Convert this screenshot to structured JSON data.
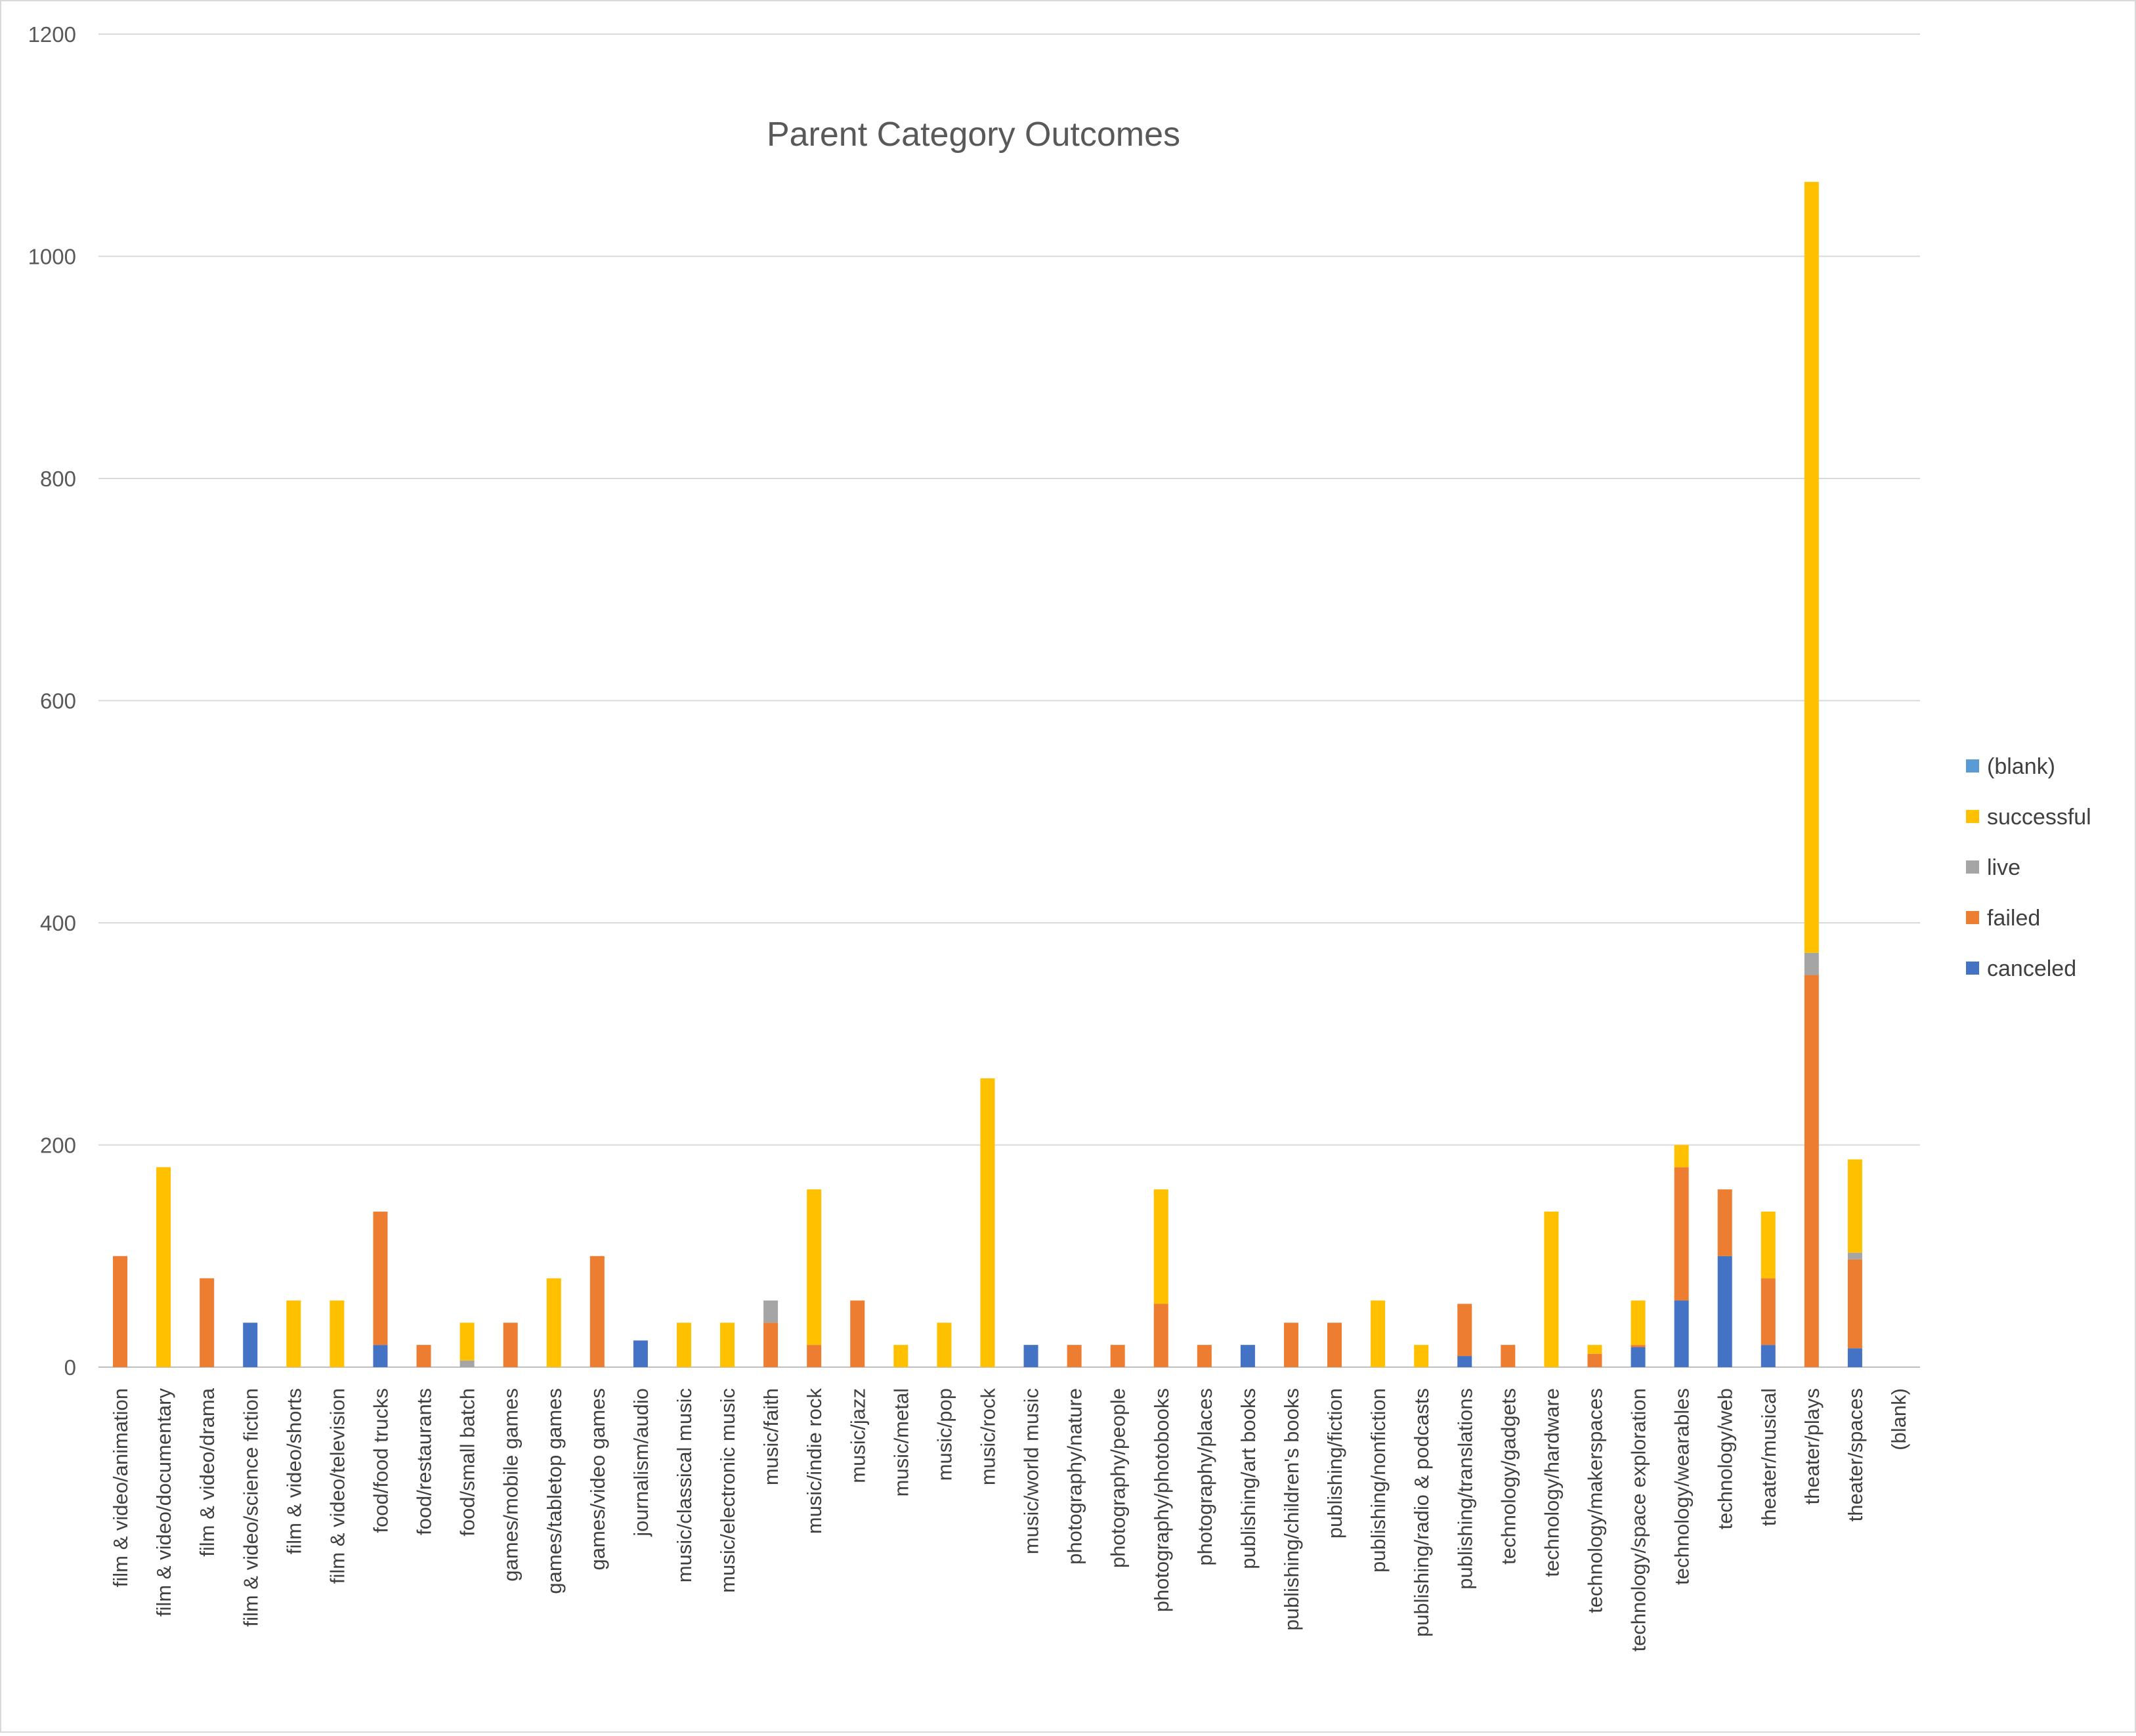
{
  "chart_data": {
    "type": "bar",
    "stacked": true,
    "title": "Parent Category Outcomes",
    "xlabel": "",
    "ylabel": "",
    "ylim": [
      0,
      1200
    ],
    "yticks": [
      "0",
      "200",
      "400",
      "600",
      "800",
      "1000",
      "1200"
    ],
    "grid": true,
    "legend_position": "right",
    "categories": [
      "film & video/animation",
      "film & video/documentary",
      "film & video/drama",
      "film & video/science fiction",
      "film & video/shorts",
      "film & video/television",
      "food/food trucks",
      "food/restaurants",
      "food/small batch",
      "games/mobile games",
      "games/tabletop games",
      "games/video games",
      "journalism/audio",
      "music/classical music",
      "music/electronic music",
      "music/faith",
      "music/indie rock",
      "music/jazz",
      "music/metal",
      "music/pop",
      "music/rock",
      "music/world music",
      "photography/nature",
      "photography/people",
      "photography/photobooks",
      "photography/places",
      "publishing/art books",
      "publishing/children's books",
      "publishing/fiction",
      "publishing/nonfiction",
      "publishing/radio & podcasts",
      "publishing/translations",
      "technology/gadgets",
      "technology/hardware",
      "technology/makerspaces",
      "technology/space exploration",
      "technology/wearables",
      "technology/web",
      "theater/musical",
      "theater/plays",
      "theater/spaces",
      "(blank)"
    ],
    "series": [
      {
        "name": "canceled",
        "color": "#4472c4",
        "values": [
          0,
          0,
          0,
          40,
          0,
          0,
          20,
          0,
          0,
          0,
          0,
          0,
          24,
          0,
          0,
          0,
          0,
          0,
          0,
          0,
          0,
          20,
          0,
          0,
          0,
          0,
          20,
          0,
          0,
          0,
          0,
          10,
          0,
          0,
          0,
          18,
          60,
          100,
          20,
          0,
          17,
          0
        ]
      },
      {
        "name": "failed",
        "color": "#ed7d31",
        "values": [
          100,
          0,
          80,
          0,
          0,
          0,
          120,
          20,
          0,
          40,
          0,
          100,
          0,
          0,
          0,
          40,
          20,
          60,
          0,
          0,
          0,
          0,
          20,
          20,
          57,
          20,
          0,
          40,
          40,
          0,
          0,
          47,
          20,
          0,
          12,
          2,
          120,
          60,
          60,
          353,
          80,
          0
        ]
      },
      {
        "name": "live",
        "color": "#a5a5a5",
        "values": [
          0,
          0,
          0,
          0,
          0,
          0,
          0,
          0,
          6,
          0,
          0,
          0,
          0,
          0,
          0,
          20,
          0,
          0,
          0,
          0,
          0,
          0,
          0,
          0,
          0,
          0,
          0,
          0,
          0,
          0,
          0,
          0,
          0,
          0,
          0,
          0,
          0,
          0,
          0,
          20,
          6,
          0
        ]
      },
      {
        "name": "successful",
        "color": "#ffc000",
        "values": [
          0,
          180,
          0,
          0,
          60,
          60,
          0,
          0,
          34,
          0,
          80,
          0,
          0,
          40,
          40,
          0,
          140,
          0,
          20,
          40,
          260,
          0,
          0,
          0,
          103,
          0,
          0,
          0,
          0,
          60,
          20,
          0,
          0,
          140,
          8,
          40,
          20,
          0,
          60,
          694,
          84,
          0
        ]
      },
      {
        "name": "(blank)",
        "color": "#5b9bd5",
        "values": [
          0,
          0,
          0,
          0,
          0,
          0,
          0,
          0,
          0,
          0,
          0,
          0,
          0,
          0,
          0,
          0,
          0,
          0,
          0,
          0,
          0,
          0,
          0,
          0,
          0,
          0,
          0,
          0,
          0,
          0,
          0,
          0,
          0,
          0,
          0,
          0,
          0,
          0,
          0,
          0,
          0,
          0
        ]
      }
    ],
    "legend_order": [
      "(blank)",
      "successful",
      "live",
      "failed",
      "canceled"
    ]
  }
}
